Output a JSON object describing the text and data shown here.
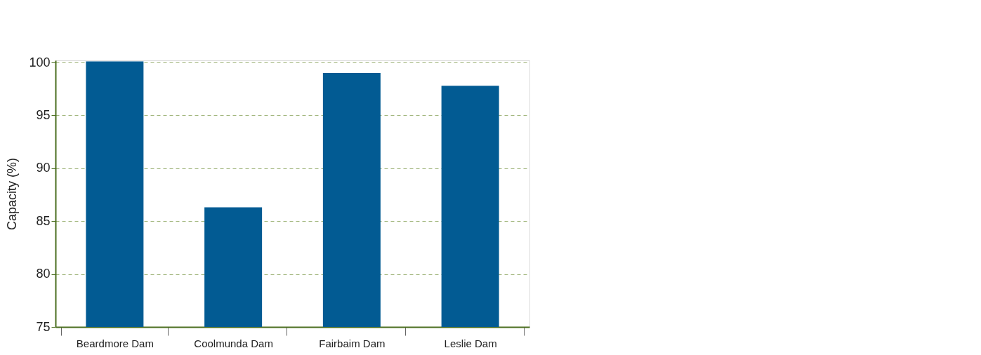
{
  "chart_data": {
    "type": "bar",
    "ylabel": "Capacity (%)",
    "categories": [
      "Beardmore Dam",
      "Coolmunda Dam",
      "Fairbaim Dam",
      "Leslie Dam"
    ],
    "values": [
      100.1,
      86.3,
      99.0,
      97.8
    ],
    "color": "#025b93",
    "ylim": [
      75,
      100.2
    ],
    "yticks": [
      75,
      80,
      85,
      90,
      95,
      100
    ],
    "grid": "y"
  }
}
